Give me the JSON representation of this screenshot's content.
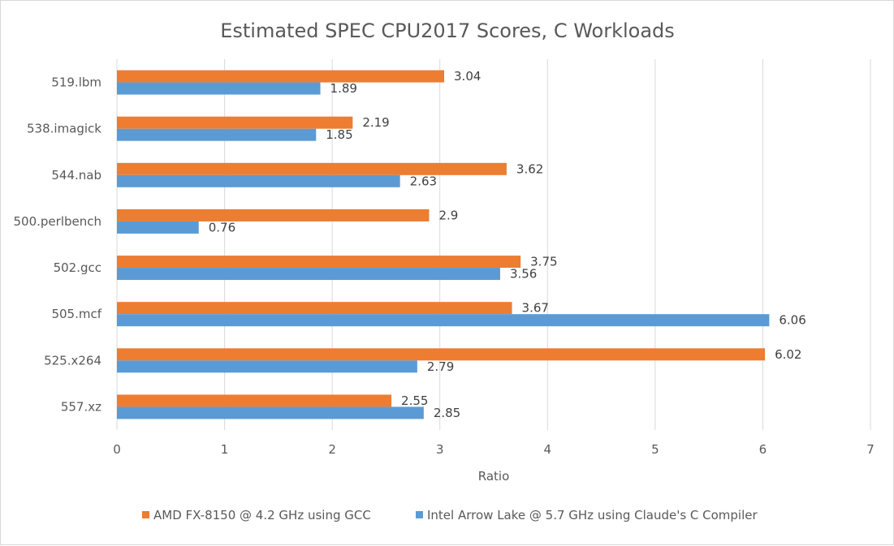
{
  "chart_data": {
    "type": "bar",
    "orientation": "horizontal",
    "title": "Estimated SPEC CPU2017 Scores, C Workloads",
    "xlabel": "Ratio",
    "ylabel": "",
    "xlim": [
      0,
      7
    ],
    "x_ticks": [
      "0",
      "1",
      "2",
      "3",
      "4",
      "5",
      "6",
      "7"
    ],
    "grid": true,
    "legend_position": "bottom",
    "categories": [
      "519.lbm",
      "538.imagick",
      "544.nab",
      "500.perlbench",
      "502.gcc",
      "505.mcf",
      "525.x264",
      "557.xz"
    ],
    "series": [
      {
        "name": "AMD FX-8150 @ 4.2 GHz using GCC",
        "color": "#ed7d31",
        "values": [
          3.04,
          2.19,
          3.62,
          2.9,
          3.75,
          3.67,
          6.02,
          2.55
        ],
        "labels": [
          "3.04",
          "2.19",
          "3.62",
          "2.9",
          "3.75",
          "3.67",
          "6.02",
          "2.55"
        ]
      },
      {
        "name": "Intel Arrow Lake @ 5.7 GHz using Claude's C Compiler",
        "color": "#5b9bd5",
        "values": [
          1.89,
          1.85,
          2.63,
          0.76,
          3.56,
          6.06,
          2.79,
          2.85
        ],
        "labels": [
          "1.89",
          "1.85",
          "2.63",
          "0.76",
          "3.56",
          "6.06",
          "2.79",
          "2.85"
        ]
      }
    ]
  }
}
